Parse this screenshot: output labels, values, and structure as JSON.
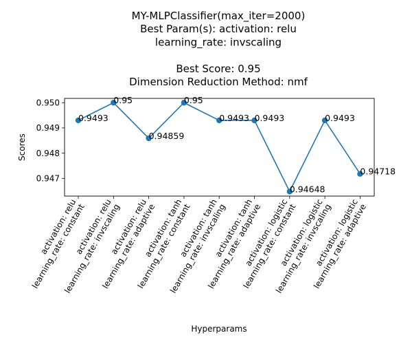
{
  "chart_data": {
    "type": "line",
    "title_lines": [
      "MY-MLPClassifier(max_iter=2000)",
      "Best Param(s): activation: relu",
      "learning_rate: invscaling",
      "",
      "Best Score: 0.95",
      "Dimension Reduction Method: nmf"
    ],
    "xlabel": "Hyperparams",
    "ylabel": "Scores",
    "categories": [
      [
        "activation: relu",
        "learning_rate: constant"
      ],
      [
        "activation: relu",
        "learning_rate: invscaling"
      ],
      [
        "activation: relu",
        "learning_rate: adaptive"
      ],
      [
        "activation: tanh",
        "learning_rate: constant"
      ],
      [
        "activation: tanh",
        "learning_rate: invscaling"
      ],
      [
        "activation: tanh",
        "learning_rate: adaptive"
      ],
      [
        "activation: logistic",
        "learning_rate: constant"
      ],
      [
        "activation: logistic",
        "learning_rate: invscaling"
      ],
      [
        "activation: logistic",
        "learning_rate: adaptive"
      ]
    ],
    "values": [
      0.9493,
      0.95,
      0.94859,
      0.95,
      0.9493,
      0.9493,
      0.94648,
      0.9493,
      0.94718
    ],
    "data_labels": [
      "0.9493",
      "0.95",
      "0.94859",
      "0.95",
      "0.9493",
      "0.9493",
      "0.94648",
      "0.9493",
      "0.94718"
    ],
    "yticks": [
      0.947,
      0.948,
      0.949,
      0.95
    ],
    "ytick_labels": [
      "0.947",
      "0.948",
      "0.949",
      "0.950"
    ],
    "ylim": [
      0.9463,
      0.95017
    ],
    "line_color": "#1f77b4",
    "grid": false,
    "legend": "none"
  }
}
